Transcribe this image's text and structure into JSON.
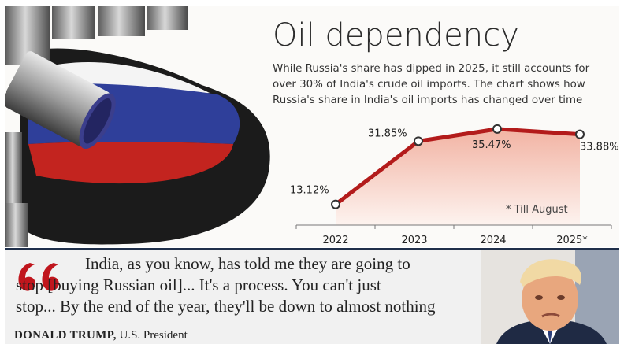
{
  "header": {
    "title": "Oil dependency",
    "description": "While Russia's share has dipped in 2025, it still accounts for over 30% of India's crude oil imports. The chart shows how Russia's share in India's oil imports has changed over time"
  },
  "chart_data": {
    "type": "area",
    "categories": [
      "2022",
      "2023",
      "2024",
      "2025*"
    ],
    "series": [
      {
        "values": [
          13.12,
          31.85,
          35.47,
          33.88
        ]
      }
    ],
    "data_labels": [
      "13.12%",
      "31.85%",
      "35.47%",
      "33.88%"
    ],
    "annotation": "* Till August",
    "ylim": [
      10,
      38
    ],
    "grid": false,
    "colors": {
      "line": "#b31b1b",
      "fill_top": "#f2b3a3",
      "fill_bottom": "#fdf3ef"
    }
  },
  "quote": {
    "text_line1": "India, as you know, has told me they are going to",
    "text_line2": "stop [buying Russian oil]... It's a process. You can't just",
    "text_line3": "stop... By the end of the year, they'll be down to almost nothing",
    "author_name": "DONALD TRUMP,",
    "author_title": "U.S. President",
    "mark_color": "#c0161d"
  }
}
